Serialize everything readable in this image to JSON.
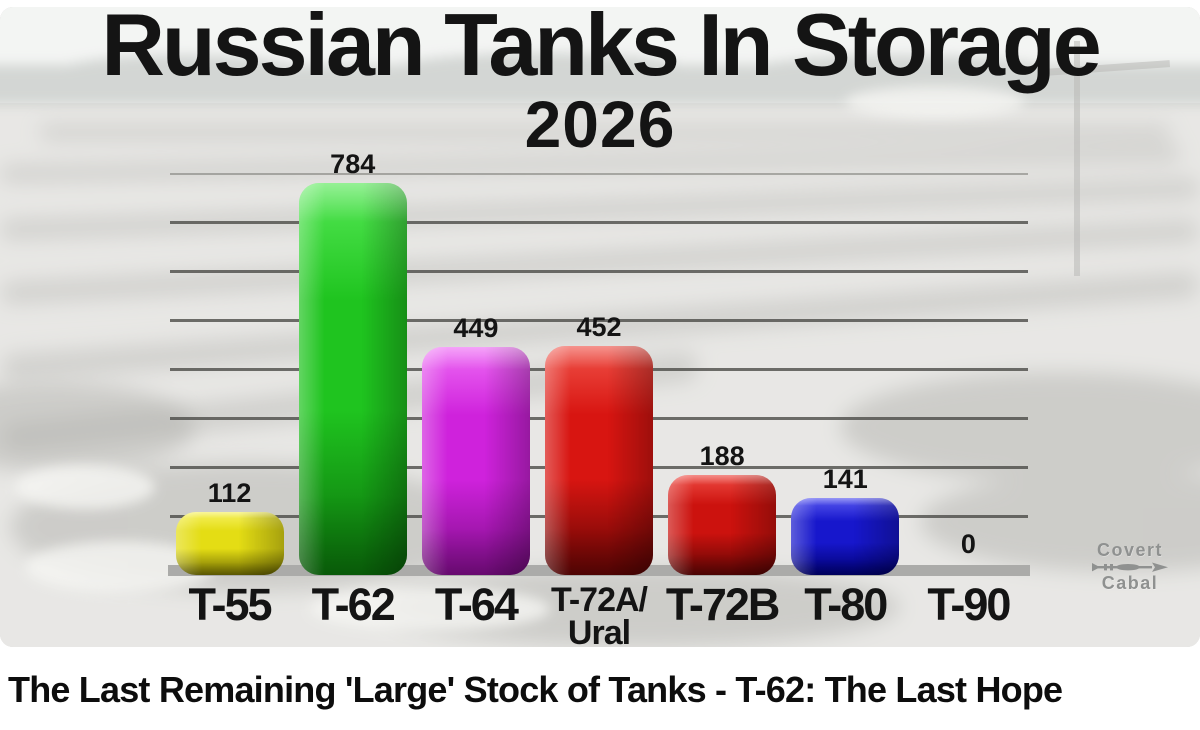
{
  "video": {
    "title": "The Last Remaining 'Large' Stock of Tanks - T-62: The Last Hope"
  },
  "watermark": {
    "line1": "Covert",
    "line2": "Cabal",
    "color": "#8f9190"
  },
  "chart_data": {
    "type": "bar",
    "title": "Russian Tanks In Storage",
    "subtitle": "2026",
    "categories": [
      "T-55",
      "T-62",
      "T-64",
      "T-72A/Ural",
      "T-72B",
      "T-80",
      "T-90"
    ],
    "values": [
      112,
      784,
      449,
      452,
      188,
      141,
      0
    ],
    "bar_colors": [
      {
        "light": "#f6f160",
        "main": "#e4dd14",
        "dark": "#6e6a02"
      },
      {
        "light": "#55e855",
        "main": "#1fc41f",
        "dark": "#0b6e0b"
      },
      {
        "light": "#ee6bf5",
        "main": "#cf22dc",
        "dark": "#7e0d88"
      },
      {
        "light": "#f05248",
        "main": "#d81511",
        "dark": "#600504"
      },
      {
        "light": "#ee4a42",
        "main": "#cc120e",
        "dark": "#5c0504"
      },
      {
        "light": "#5858f0",
        "main": "#1717cc",
        "dark": "#000070"
      },
      null
    ],
    "xlabel": "",
    "ylabel": "",
    "ylim": [
      0,
      800
    ],
    "grid_step": 100,
    "grid": true,
    "legend": "none",
    "value_labels_shown": true,
    "grid_color": "#484844",
    "baseline_color": "#ababa9",
    "text_color": "#141414"
  }
}
